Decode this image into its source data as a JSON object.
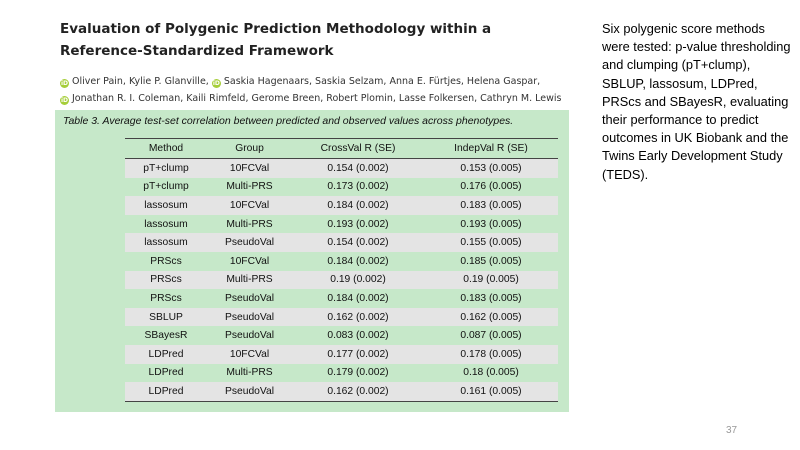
{
  "paper": {
    "title": "Evaluation of Polygenic Prediction Methodology within a Reference-Standardized Framework",
    "authors_line1": [
      "Oliver Pain, Kylie P. Glanville,",
      "Saskia Hagenaars, Saskia Selzam, Anna E. Fürtjes, Helena Gaspar,"
    ],
    "authors_line2": "Jonathan R. I. Coleman, Kaili Rimfeld, Gerome Breen, Robert Plomin, Lasse Folkersen, Cathryn M. Lewis",
    "orcid_icon_glyph": "iD"
  },
  "table": {
    "caption": "Table 3. Average test-set correlation between predicted and observed values across phenotypes.",
    "headers": [
      "Method",
      "Group",
      "CrossVal R (SE)",
      "IndepVal R (SE)"
    ],
    "rows": [
      [
        "pT+clump",
        "10FCVal",
        "0.154 (0.002)",
        "0.153 (0.005)"
      ],
      [
        "pT+clump",
        "Multi-PRS",
        "0.173 (0.002)",
        "0.176 (0.005)"
      ],
      [
        "lassosum",
        "10FCVal",
        "0.184 (0.002)",
        "0.183 (0.005)"
      ],
      [
        "lassosum",
        "Multi-PRS",
        "0.193 (0.002)",
        "0.193 (0.005)"
      ],
      [
        "lassosum",
        "PseudoVal",
        "0.154 (0.002)",
        "0.155 (0.005)"
      ],
      [
        "PRScs",
        "10FCVal",
        "0.184 (0.002)",
        "0.185 (0.005)"
      ],
      [
        "PRScs",
        "Multi-PRS",
        "0.19 (0.002)",
        "0.19 (0.005)"
      ],
      [
        "PRScs",
        "PseudoVal",
        "0.184 (0.002)",
        "0.183 (0.005)"
      ],
      [
        "SBLUP",
        "PseudoVal",
        "0.162 (0.002)",
        "0.162 (0.005)"
      ],
      [
        "SBayesR",
        "PseudoVal",
        "0.083 (0.002)",
        "0.087 (0.005)"
      ],
      [
        "LDPred",
        "10FCVal",
        "0.177 (0.002)",
        "0.178 (0.005)"
      ],
      [
        "LDPred",
        "Multi-PRS",
        "0.179 (0.002)",
        "0.18 (0.005)"
      ],
      [
        "LDPred",
        "PseudoVal",
        "0.162 (0.002)",
        "0.161 (0.005)"
      ]
    ]
  },
  "summary": "Six polygenic score methods were tested: p-value thresholding and clumping (pT+clump), SBLUP, lassosum, LDPred, PRScs and SBayesR, evaluating their performance to predict outcomes in UK Biobank and the Twins Early Development Study (TEDS).",
  "slide_number": "37",
  "colors": {
    "panel_background": "#c6e8c9",
    "striped_row": "#e4e4e4",
    "orcid": "#a6ce39"
  }
}
